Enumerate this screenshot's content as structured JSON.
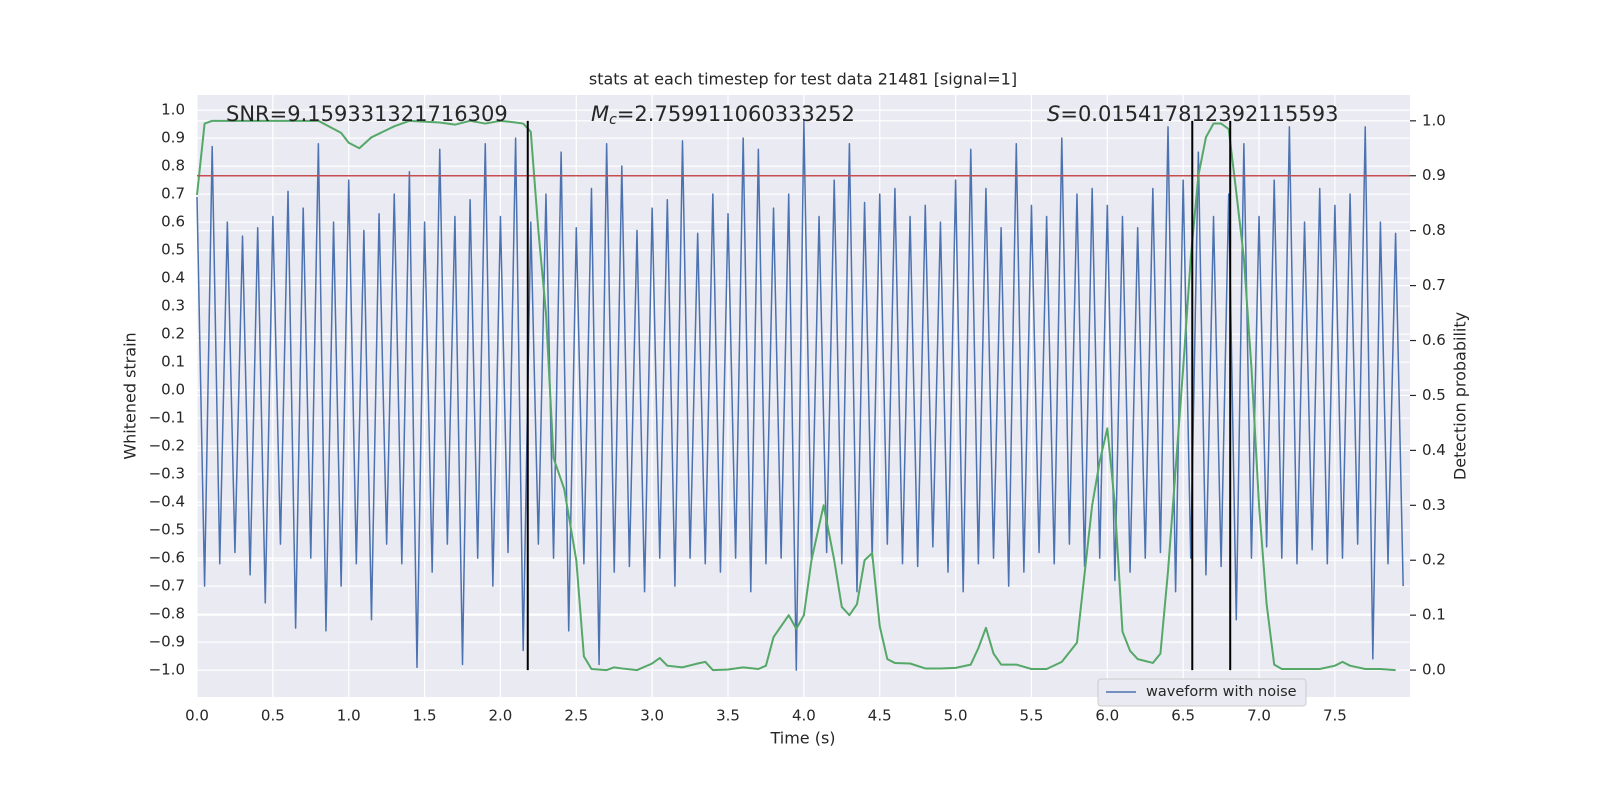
{
  "chart_data": {
    "type": "line",
    "title": "stats at each timestep for test data 21481 [signal=1]",
    "x_label": "Time (s)",
    "y_label": "Whitened strain",
    "y2_label": "Detection probability",
    "grid": true,
    "legend_position": "lower right",
    "xlim": [
      0,
      7.995
    ],
    "ylim": [
      -1.096,
      1.054
    ],
    "y2lim": [
      -0.049,
      1.047
    ],
    "xticks": [
      {
        "value": 0,
        "label": "0.0"
      },
      {
        "value": 0.5,
        "label": "0.5"
      },
      {
        "value": 1,
        "label": "1.0"
      },
      {
        "value": 1.5,
        "label": "1.5"
      },
      {
        "value": 2,
        "label": "2.0"
      },
      {
        "value": 2.5,
        "label": "2.5"
      },
      {
        "value": 3,
        "label": "3.0"
      },
      {
        "value": 3.5,
        "label": "3.5"
      },
      {
        "value": 4,
        "label": "4.0"
      },
      {
        "value": 4.5,
        "label": "4.5"
      },
      {
        "value": 5,
        "label": "5.0"
      },
      {
        "value": 5.5,
        "label": "5.5"
      },
      {
        "value": 6,
        "label": "6.0"
      },
      {
        "value": 6.5,
        "label": "6.5"
      },
      {
        "value": 7,
        "label": "7.0"
      },
      {
        "value": 7.5,
        "label": "7.5"
      }
    ],
    "yticks": [
      {
        "value": -1,
        "label": "−1.0"
      },
      {
        "value": -0.9,
        "label": "−0.9"
      },
      {
        "value": -0.8,
        "label": "−0.8"
      },
      {
        "value": -0.7,
        "label": "−0.7"
      },
      {
        "value": -0.6,
        "label": "−0.6"
      },
      {
        "value": -0.5,
        "label": "−0.5"
      },
      {
        "value": -0.4,
        "label": "−0.4"
      },
      {
        "value": -0.3,
        "label": "−0.3"
      },
      {
        "value": -0.2,
        "label": "−0.2"
      },
      {
        "value": -0.1,
        "label": "−0.1"
      },
      {
        "value": 0,
        "label": "0.0"
      },
      {
        "value": 0.1,
        "label": "0.1"
      },
      {
        "value": 0.2,
        "label": "0.2"
      },
      {
        "value": 0.3,
        "label": "0.3"
      },
      {
        "value": 0.4,
        "label": "0.4"
      },
      {
        "value": 0.5,
        "label": "0.5"
      },
      {
        "value": 0.6,
        "label": "0.6"
      },
      {
        "value": 0.7,
        "label": "0.7"
      },
      {
        "value": 0.8,
        "label": "0.8"
      },
      {
        "value": 0.9,
        "label": "0.9"
      },
      {
        "value": 1,
        "label": "1.0"
      }
    ],
    "y2ticks": [
      {
        "value": 0,
        "label": "0.0"
      },
      {
        "value": 0.1,
        "label": "0.1"
      },
      {
        "value": 0.2,
        "label": "0.2"
      },
      {
        "value": 0.3,
        "label": "0.3"
      },
      {
        "value": 0.4,
        "label": "0.4"
      },
      {
        "value": 0.5,
        "label": "0.5"
      },
      {
        "value": 0.6,
        "label": "0.6"
      },
      {
        "value": 0.7,
        "label": "0.7"
      },
      {
        "value": 0.8,
        "label": "0.8"
      },
      {
        "value": 0.9,
        "label": "0.9"
      },
      {
        "value": 1,
        "label": "1.0"
      }
    ],
    "annotations": [
      {
        "text": "SNR=9.159331321716309"
      },
      {
        "symbol": "M",
        "subscript": "c",
        "text": "=2.759911060333252"
      },
      {
        "symbol": "S",
        "text": "=0.015417812392115593"
      }
    ],
    "hline": {
      "value": 0.9,
      "axis": "y2",
      "color": "#c44e52"
    },
    "vlines": {
      "values": [
        2.18,
        6.56,
        6.81
      ],
      "color": "#000000"
    },
    "series": [
      {
        "name": "waveform with noise",
        "color": "#4c72b0",
        "x": [
          0,
          0.05,
          0.1,
          0.15,
          0.2,
          0.25,
          0.3,
          0.35,
          0.4,
          0.45,
          0.5,
          0.55,
          0.6,
          0.65,
          0.7,
          0.75,
          0.8,
          0.85,
          0.9,
          0.95,
          1,
          1.05,
          1.1,
          1.15,
          1.2,
          1.25,
          1.3,
          1.35,
          1.4,
          1.45,
          1.5,
          1.55,
          1.6,
          1.65,
          1.7,
          1.75,
          1.8,
          1.85,
          1.9,
          1.95,
          2,
          2.05,
          2.1,
          2.15,
          2.2,
          2.25,
          2.3,
          2.35,
          2.4,
          2.45,
          2.5,
          2.55,
          2.6,
          2.65,
          2.7,
          2.75,
          2.8,
          2.85,
          2.9,
          2.95,
          3,
          3.05,
          3.1,
          3.15,
          3.2,
          3.25,
          3.3,
          3.35,
          3.4,
          3.45,
          3.5,
          3.55,
          3.6,
          3.65,
          3.7,
          3.75,
          3.8,
          3.85,
          3.9,
          3.95,
          4,
          4.05,
          4.1,
          4.15,
          4.2,
          4.25,
          4.3,
          4.35,
          4.4,
          4.45,
          4.5,
          4.55,
          4.6,
          4.65,
          4.7,
          4.75,
          4.8,
          4.85,
          4.9,
          4.95,
          5,
          5.05,
          5.1,
          5.15,
          5.2,
          5.25,
          5.3,
          5.35,
          5.4,
          5.45,
          5.5,
          5.55,
          5.6,
          5.65,
          5.7,
          5.75,
          5.8,
          5.85,
          5.9,
          5.95,
          6,
          6.05,
          6.1,
          6.15,
          6.2,
          6.25,
          6.3,
          6.35,
          6.4,
          6.45,
          6.5,
          6.55,
          6.6,
          6.65,
          6.7,
          6.75,
          6.8,
          6.85,
          6.9,
          6.95,
          7,
          7.05,
          7.1,
          7.15,
          7.2,
          7.25,
          7.3,
          7.35,
          7.4,
          7.45,
          7.5,
          7.55,
          7.6,
          7.65,
          7.7,
          7.75,
          7.8,
          7.85,
          7.9,
          7.95
        ],
        "values": [
          0.69,
          -0.7,
          0.87,
          -0.62,
          0.6,
          -0.58,
          0.55,
          -0.66,
          0.58,
          -0.76,
          0.62,
          -0.55,
          0.71,
          -0.85,
          0.65,
          -0.6,
          0.88,
          -0.86,
          0.6,
          -0.7,
          0.75,
          -0.62,
          0.57,
          -0.82,
          0.63,
          -0.55,
          0.7,
          -0.62,
          0.78,
          -0.99,
          0.6,
          -0.65,
          0.86,
          -0.55,
          0.62,
          -0.98,
          0.68,
          -0.6,
          0.88,
          -0.7,
          0.62,
          -0.58,
          0.9,
          -0.93,
          0.6,
          -0.55,
          0.7,
          -0.6,
          0.85,
          -0.86,
          0.58,
          -0.62,
          0.72,
          -0.98,
          0.88,
          -0.65,
          0.8,
          -0.63,
          0.57,
          -0.72,
          0.65,
          -0.6,
          0.68,
          -0.7,
          0.89,
          -0.6,
          0.56,
          -0.62,
          0.7,
          -0.65,
          0.63,
          -0.6,
          0.9,
          -0.72,
          0.86,
          -0.62,
          0.65,
          -0.6,
          0.7,
          -1.0,
          0.96,
          -0.6,
          0.62,
          -0.58,
          0.75,
          -0.62,
          0.88,
          -0.72,
          0.67,
          -0.6,
          0.7,
          -0.55,
          0.72,
          -0.62,
          0.62,
          -0.63,
          0.66,
          -0.56,
          0.6,
          -0.65,
          0.75,
          -0.72,
          0.86,
          -0.62,
          0.72,
          -0.6,
          0.58,
          -0.7,
          0.88,
          -0.65,
          0.66,
          -0.58,
          0.62,
          -0.62,
          0.9,
          -0.55,
          0.7,
          -0.63,
          0.72,
          -0.6,
          0.66,
          -0.68,
          0.62,
          -0.65,
          0.58,
          -0.6,
          0.72,
          -0.58,
          0.94,
          -0.72,
          0.75,
          -0.6,
          0.85,
          -0.66,
          0.62,
          -0.63,
          0.7,
          -0.82,
          0.88,
          -0.6,
          0.62,
          -0.56,
          0.75,
          -0.6,
          0.94,
          -0.62,
          0.6,
          -0.57,
          0.72,
          -0.62,
          0.66,
          -0.6,
          0.7,
          -0.55,
          0.94,
          -0.96,
          0.6,
          -0.62,
          0.56,
          -0.7
        ]
      },
      {
        "color": "#55a868",
        "axis": "y2",
        "x": [
          0,
          0.05,
          0.1,
          0.3,
          0.5,
          0.8,
          0.95,
          1,
          1.07,
          1.15,
          1.3,
          1.4,
          1.6,
          1.7,
          1.8,
          1.9,
          2,
          2.1,
          2.15,
          2.2,
          2.25,
          2.3,
          2.35,
          2.42,
          2.5,
          2.55,
          2.6,
          2.7,
          2.75,
          2.8,
          2.9,
          3,
          3.05,
          3.1,
          3.2,
          3.3,
          3.35,
          3.4,
          3.5,
          3.6,
          3.7,
          3.75,
          3.8,
          3.9,
          3.95,
          4,
          4.05,
          4.13,
          4.2,
          4.25,
          4.3,
          4.35,
          4.4,
          4.45,
          4.5,
          4.55,
          4.6,
          4.7,
          4.8,
          4.9,
          5,
          5.1,
          5.15,
          5.2,
          5.25,
          5.3,
          5.4,
          5.5,
          5.6,
          5.7,
          5.8,
          5.9,
          5.95,
          6,
          6.05,
          6.1,
          6.15,
          6.2,
          6.3,
          6.35,
          6.4,
          6.5,
          6.55,
          6.6,
          6.65,
          6.7,
          6.75,
          6.8,
          6.85,
          6.9,
          6.95,
          7,
          7.05,
          7.1,
          7.15,
          7.3,
          7.4,
          7.5,
          7.55,
          7.6,
          7.7,
          7.8,
          7.9
        ],
        "values": [
          0.865,
          0.995,
          1.0,
          1.0,
          1.0,
          1.0,
          0.978,
          0.96,
          0.95,
          0.97,
          0.99,
          1.0,
          0.997,
          0.993,
          1.0,
          0.995,
          1.0,
          0.997,
          0.995,
          0.98,
          0.8,
          0.65,
          0.386,
          0.33,
          0.2,
          0.025,
          0.002,
          0.0,
          0.005,
          0.003,
          0.0,
          0.012,
          0.022,
          0.008,
          0.005,
          0.012,
          0.015,
          0.0,
          0.001,
          0.005,
          0.002,
          0.008,
          0.06,
          0.1,
          0.075,
          0.1,
          0.2,
          0.3,
          0.2,
          0.115,
          0.1,
          0.12,
          0.2,
          0.213,
          0.08,
          0.02,
          0.013,
          0.012,
          0.003,
          0.003,
          0.004,
          0.01,
          0.04,
          0.077,
          0.03,
          0.01,
          0.01,
          0.002,
          0.002,
          0.015,
          0.05,
          0.3,
          0.38,
          0.44,
          0.3,
          0.07,
          0.035,
          0.02,
          0.013,
          0.03,
          0.18,
          0.55,
          0.75,
          0.9,
          0.97,
          0.995,
          0.995,
          0.985,
          0.87,
          0.75,
          0.55,
          0.3,
          0.12,
          0.01,
          0.002,
          0.002,
          0.002,
          0.008,
          0.015,
          0.008,
          0.002,
          0.002,
          0.0
        ]
      }
    ]
  }
}
